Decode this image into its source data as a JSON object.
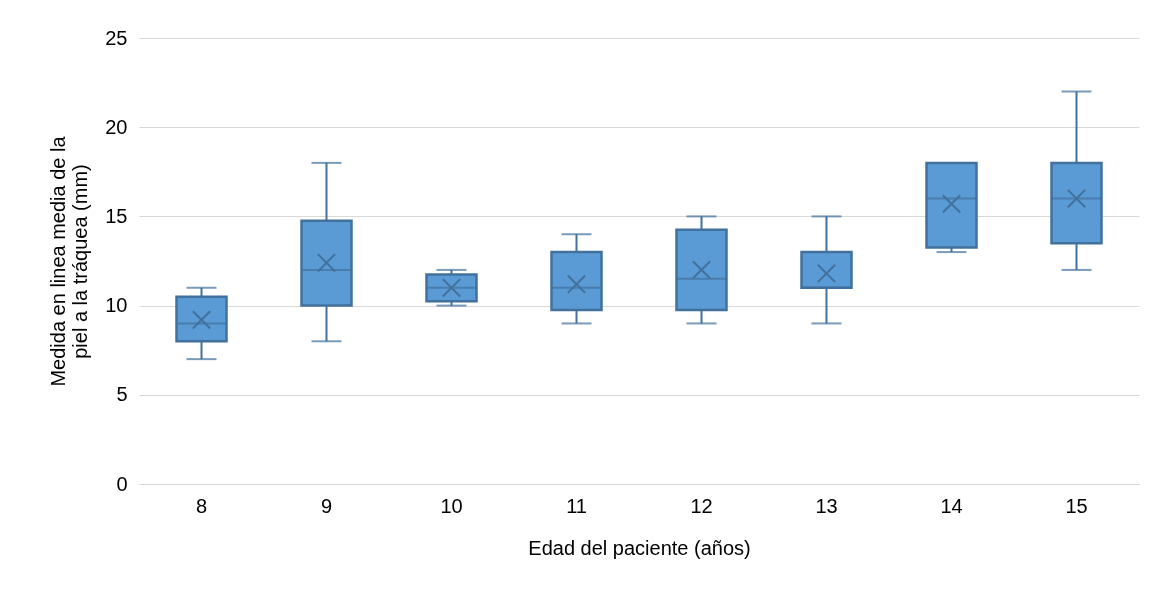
{
  "chart_data": {
    "type": "box",
    "xlabel": "Edad del paciente (años)",
    "ylabel": "Medida en linea media de la piel a la tráquea (mm)",
    "categories": [
      "8",
      "9",
      "10",
      "11",
      "12",
      "13",
      "14",
      "15"
    ],
    "color": "#5b9bd5",
    "marker": "cross",
    "boxes": [
      {
        "low": 7,
        "q1": 8,
        "median": 9,
        "q3": 10.5,
        "high": 11,
        "mean": 9.2
      },
      {
        "low": 8,
        "q1": 10,
        "median": 12,
        "q3": 14.75,
        "high": 18,
        "mean": 12.4
      },
      {
        "low": 10,
        "q1": 10.25,
        "median": 11,
        "q3": 11.75,
        "high": 12,
        "mean": 11
      },
      {
        "low": 9,
        "q1": 9.75,
        "median": 11,
        "q3": 13,
        "high": 14,
        "mean": 11.2
      },
      {
        "low": 9,
        "q1": 9.75,
        "median": 11.5,
        "q3": 14.25,
        "high": 15,
        "mean": 12
      },
      {
        "low": 9,
        "q1": 11,
        "median": 11,
        "q3": 13,
        "high": 15,
        "mean": 11.8
      },
      {
        "low": 13,
        "q1": 13.25,
        "median": 16,
        "q3": 18,
        "high": 18,
        "mean": 15.7
      },
      {
        "low": 12,
        "q1": 13.5,
        "median": 16,
        "q3": 18,
        "high": 22,
        "mean": 16
      }
    ],
    "ylim": [
      0,
      25
    ],
    "yticks": [
      0,
      5,
      10,
      15,
      20,
      25
    ],
    "grid": "y"
  }
}
